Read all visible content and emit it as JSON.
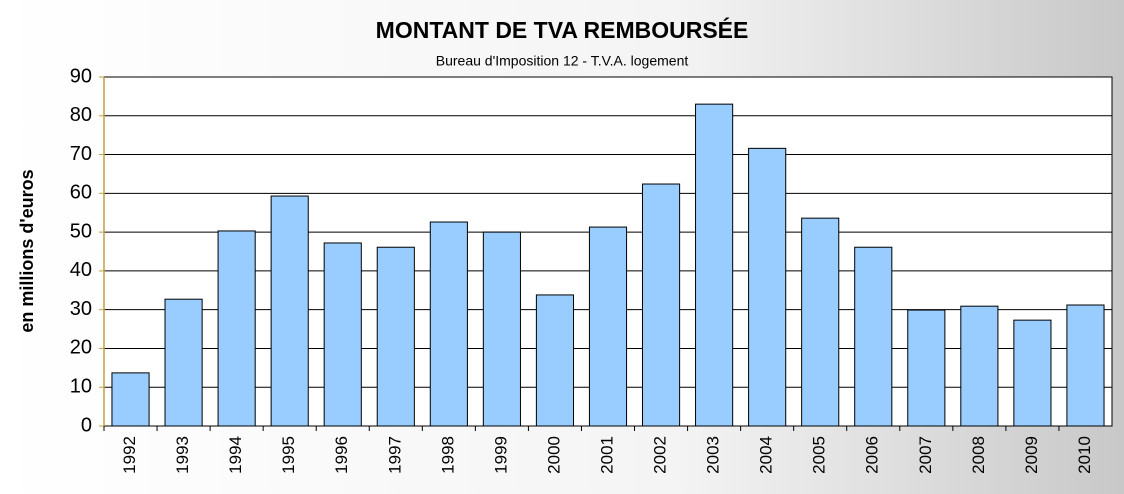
{
  "chart_data": {
    "type": "bar",
    "title": "MONTANT DE TVA REMBOURSÉE",
    "subtitle": "Bureau d'Imposition 12 - T.V.A. logement",
    "y_label": "en millions d'euros",
    "categories": [
      "1992",
      "1993",
      "1994",
      "1995",
      "1996",
      "1997",
      "1998",
      "1999",
      "2000",
      "2001",
      "2002",
      "2003",
      "2004",
      "2005",
      "2006",
      "2007",
      "2008",
      "2009",
      "2010"
    ],
    "values": [
      13.7,
      32.7,
      50.3,
      59.3,
      47.2,
      46.1,
      52.6,
      50.0,
      33.8,
      51.3,
      62.4,
      83.0,
      71.6,
      53.6,
      46.1,
      29.9,
      30.9,
      27.3,
      31.2
    ],
    "color": "#99ccff",
    "ylim": [
      0,
      90
    ],
    "yticks": [
      0,
      10,
      20,
      30,
      40,
      50,
      60,
      70,
      80,
      90
    ],
    "grid": true
  }
}
